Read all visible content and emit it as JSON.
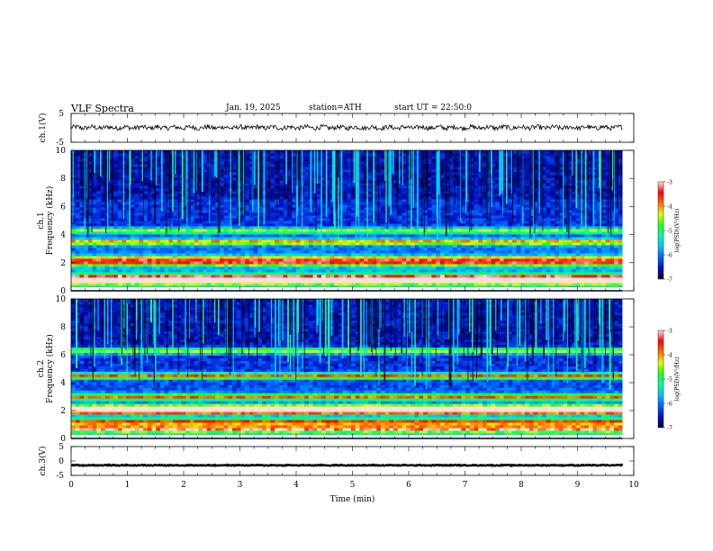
{
  "header": {
    "title": "VLF Spectra",
    "date": "Jan. 19, 2025",
    "station": "station=ATH",
    "start": "start UT =  22:50:0"
  },
  "colors": {
    "colormap": [
      "#000030",
      "#0010c0",
      "#0060ff",
      "#00c0ff",
      "#00ffa0",
      "#20ff20",
      "#e0ff00",
      "#ff7000",
      "#ff0000",
      "#ffe0e0"
    ]
  },
  "chart_data": [
    {
      "type": "line",
      "name": "ch1-waveform",
      "ylabel": "ch.1(V)",
      "ylim": [
        -5,
        5
      ],
      "yticks": [
        "5",
        "-5"
      ],
      "xlim": [
        0,
        10
      ],
      "baseline": 0.1,
      "noise_amplitude": 0.8
    },
    {
      "type": "heatmap",
      "name": "ch1-spectrogram",
      "ylabel_line1": "ch.1",
      "ylabel_line2": "Frequency (kHz)",
      "ylim": [
        0,
        10
      ],
      "yticks": [
        "10",
        "8",
        "6",
        "4",
        "2",
        "0"
      ],
      "xlim": [
        0,
        10
      ],
      "data_end_min": 9.8,
      "bands_khz": [
        {
          "f": 0.7,
          "level": 0.78
        },
        {
          "f": 1.0,
          "level": 0.65
        },
        {
          "f": 2.0,
          "level": 0.58
        },
        {
          "f": 2.3,
          "level": 0.55
        },
        {
          "f": 3.5,
          "level": 0.62
        },
        {
          "f": 4.3,
          "level": 0.5
        }
      ],
      "colorbar": {
        "label": "log(PSD)(V²/Hz)",
        "ticks": [
          "-3",
          "-4",
          "-5",
          "-6",
          "-7"
        ],
        "range": [
          -7,
          -3
        ]
      }
    },
    {
      "type": "heatmap",
      "name": "ch2-spectrogram",
      "ylabel_line1": "ch.2",
      "ylabel_line2": "Frequency (kHz)",
      "ylim": [
        0,
        10
      ],
      "yticks": [
        "10",
        "8",
        "6",
        "4",
        "2",
        "0"
      ],
      "xlim": [
        0,
        10
      ],
      "data_end_min": 9.8,
      "bands_khz": [
        {
          "f": 0.7,
          "level": 0.7
        },
        {
          "f": 1.2,
          "level": 0.6
        },
        {
          "f": 2.0,
          "level": 0.92
        },
        {
          "f": 2.2,
          "level": 0.85
        },
        {
          "f": 3.0,
          "level": 0.62
        },
        {
          "f": 4.5,
          "level": 0.72
        },
        {
          "f": 6.3,
          "level": 0.55
        }
      ],
      "colorbar": {
        "label": "log(PSD)(V²/Hz)",
        "ticks": [
          "-3",
          "-4",
          "-5",
          "-6",
          "-7"
        ],
        "range": [
          -7,
          -3
        ]
      }
    },
    {
      "type": "line",
      "name": "ch3-waveform",
      "ylabel": "ch.3(V)",
      "ylim": [
        -5,
        5
      ],
      "yticks": [
        "5",
        "0",
        "-5"
      ],
      "xlim": [
        0,
        10
      ],
      "baseline": -1.5,
      "noise_amplitude": 0.15,
      "xlabel": "Time (min)",
      "xticks": [
        "0",
        "1",
        "2",
        "3",
        "4",
        "5",
        "6",
        "7",
        "8",
        "9",
        "10"
      ]
    }
  ]
}
